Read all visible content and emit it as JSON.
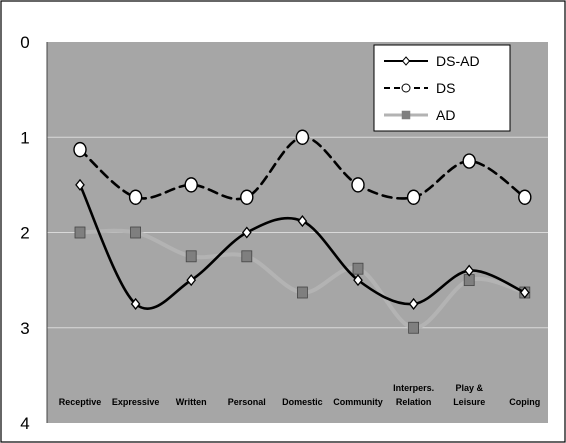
{
  "chart_data": {
    "type": "line",
    "title": "",
    "xlabel": "",
    "ylabel": "",
    "categories": [
      "Receptive",
      "Expressive",
      "Written",
      "Personal",
      "Domestic",
      "Community",
      "Interpers. Relation",
      "Play & Leisure",
      "Coping"
    ],
    "category_lines": [
      [
        "Receptive"
      ],
      [
        "Expressive"
      ],
      [
        "Written"
      ],
      [
        "Personal"
      ],
      [
        "Domestic"
      ],
      [
        "Community"
      ],
      [
        "Interpers.",
        "Relation"
      ],
      [
        "Play &",
        "Leisure"
      ],
      [
        "Coping"
      ]
    ],
    "yticks": [
      0,
      1,
      2,
      3,
      4
    ],
    "ylim": [
      0,
      4
    ],
    "y_inverted": true,
    "grid": true,
    "legend_position": "top-right",
    "series": [
      {
        "name": "DS-AD",
        "values": [
          1.5,
          2.75,
          2.5,
          2.0,
          1.88,
          2.5,
          2.75,
          2.4,
          2.63
        ],
        "color": "#000000",
        "line_style": "solid",
        "marker": "diamond"
      },
      {
        "name": "DS",
        "values": [
          1.13,
          1.63,
          1.5,
          1.63,
          1.0,
          1.5,
          1.63,
          1.25,
          1.63
        ],
        "color": "#000000",
        "line_style": "dashed",
        "marker": "circle"
      },
      {
        "name": "AD",
        "values": [
          2.0,
          2.0,
          2.25,
          2.25,
          2.63,
          2.38,
          3.0,
          2.5,
          2.63
        ],
        "color": "#b3b3b3",
        "line_style": "solid",
        "marker": "square"
      }
    ]
  }
}
